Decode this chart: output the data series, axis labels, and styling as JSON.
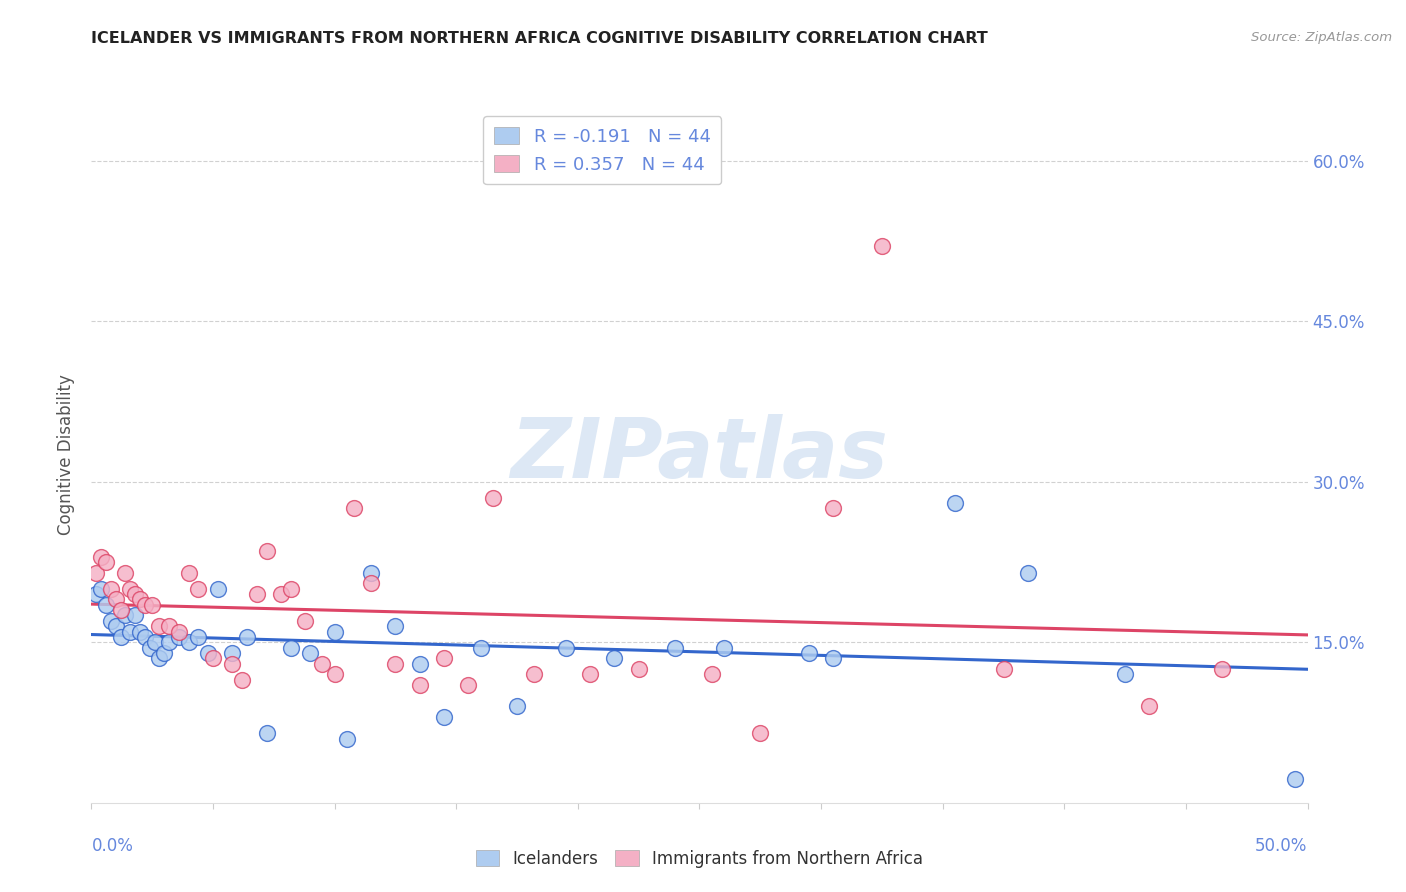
{
  "title": "ICELANDER VS IMMIGRANTS FROM NORTHERN AFRICA COGNITIVE DISABILITY CORRELATION CHART",
  "source_text": "Source: ZipAtlas.com",
  "ylabel": "Cognitive Disability",
  "xlim": [
    0.0,
    0.5
  ],
  "ylim": [
    0.0,
    0.65
  ],
  "xticks": [
    0.0,
    0.05,
    0.1,
    0.15,
    0.2,
    0.25,
    0.3,
    0.35,
    0.4,
    0.45,
    0.5
  ],
  "yticks": [
    0.15,
    0.3,
    0.45,
    0.6
  ],
  "right_yticklabels": [
    "15.0%",
    "30.0%",
    "45.0%",
    "60.0%"
  ],
  "x_edge_labels": [
    "0.0%",
    "50.0%"
  ],
  "legend_labels": [
    "Icelanders",
    "Immigrants from Northern Africa"
  ],
  "r_icelanders": -0.191,
  "n_icelanders": 44,
  "r_immigrants": 0.357,
  "n_immigrants": 44,
  "color_icelanders": "#aeccf0",
  "color_immigrants": "#f4b0c5",
  "line_color_icelanders": "#3366cc",
  "line_color_immigrants": "#dd4466",
  "background_color": "#ffffff",
  "grid_color": "#cccccc",
  "watermark_text": "ZIPatlas",
  "watermark_color": "#dde8f5",
  "title_color": "#222222",
  "source_color": "#999999",
  "tick_color": "#6688dd",
  "icelanders_x": [
    0.002,
    0.004,
    0.006,
    0.008,
    0.01,
    0.012,
    0.014,
    0.016,
    0.018,
    0.02,
    0.022,
    0.024,
    0.026,
    0.028,
    0.03,
    0.032,
    0.036,
    0.04,
    0.044,
    0.048,
    0.052,
    0.058,
    0.064,
    0.072,
    0.082,
    0.09,
    0.1,
    0.105,
    0.115,
    0.125,
    0.135,
    0.145,
    0.16,
    0.175,
    0.195,
    0.215,
    0.24,
    0.26,
    0.295,
    0.305,
    0.355,
    0.385,
    0.425,
    0.495
  ],
  "icelanders_y": [
    0.195,
    0.2,
    0.185,
    0.17,
    0.165,
    0.155,
    0.175,
    0.16,
    0.175,
    0.16,
    0.155,
    0.145,
    0.15,
    0.135,
    0.14,
    0.15,
    0.155,
    0.15,
    0.155,
    0.14,
    0.2,
    0.14,
    0.155,
    0.065,
    0.145,
    0.14,
    0.16,
    0.06,
    0.215,
    0.165,
    0.13,
    0.08,
    0.145,
    0.09,
    0.145,
    0.135,
    0.145,
    0.145,
    0.14,
    0.135,
    0.28,
    0.215,
    0.12,
    0.022
  ],
  "immigrants_x": [
    0.002,
    0.004,
    0.006,
    0.008,
    0.01,
    0.012,
    0.014,
    0.016,
    0.018,
    0.02,
    0.022,
    0.025,
    0.028,
    0.032,
    0.036,
    0.04,
    0.044,
    0.05,
    0.058,
    0.062,
    0.068,
    0.072,
    0.078,
    0.082,
    0.088,
    0.095,
    0.1,
    0.108,
    0.115,
    0.125,
    0.135,
    0.145,
    0.155,
    0.165,
    0.182,
    0.205,
    0.225,
    0.255,
    0.275,
    0.305,
    0.325,
    0.375,
    0.435,
    0.465
  ],
  "immigrants_y": [
    0.215,
    0.23,
    0.225,
    0.2,
    0.19,
    0.18,
    0.215,
    0.2,
    0.195,
    0.19,
    0.185,
    0.185,
    0.165,
    0.165,
    0.16,
    0.215,
    0.2,
    0.135,
    0.13,
    0.115,
    0.195,
    0.235,
    0.195,
    0.2,
    0.17,
    0.13,
    0.12,
    0.275,
    0.205,
    0.13,
    0.11,
    0.135,
    0.11,
    0.285,
    0.12,
    0.12,
    0.125,
    0.12,
    0.065,
    0.275,
    0.52,
    0.125,
    0.09,
    0.125
  ]
}
